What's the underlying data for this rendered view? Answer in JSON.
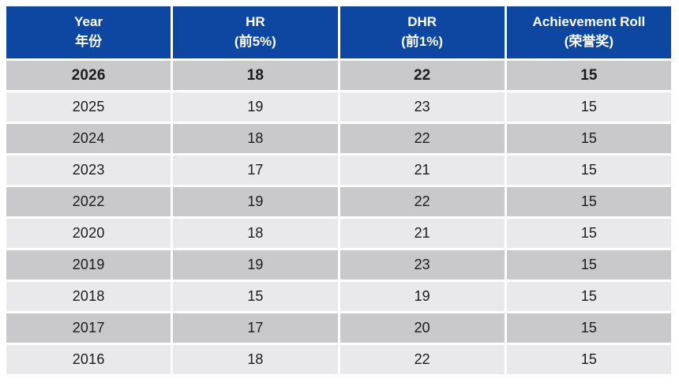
{
  "table": {
    "headers": [
      {
        "line1": "Year",
        "line2": "年份"
      },
      {
        "line1": "HR",
        "line2": "(前5%)"
      },
      {
        "line1": "DHR",
        "line2": "(前1%)"
      },
      {
        "line1": "Achievement Roll",
        "line2": "(荣誉奖)"
      }
    ],
    "rows": [
      {
        "year": "2026",
        "hr": "18",
        "dhr": "22",
        "roll": "15"
      },
      {
        "year": "2025",
        "hr": "19",
        "dhr": "23",
        "roll": "15"
      },
      {
        "year": "2024",
        "hr": "18",
        "dhr": "22",
        "roll": "15"
      },
      {
        "year": "2023",
        "hr": "17",
        "dhr": "21",
        "roll": "15"
      },
      {
        "year": "2022",
        "hr": "19",
        "dhr": "22",
        "roll": "15"
      },
      {
        "year": "2020",
        "hr": "18",
        "dhr": "21",
        "roll": "15"
      },
      {
        "year": "2019",
        "hr": "19",
        "dhr": "23",
        "roll": "15"
      },
      {
        "year": "2018",
        "hr": "15",
        "dhr": "19",
        "roll": "15"
      },
      {
        "year": "2017",
        "hr": "17",
        "dhr": "20",
        "roll": "15"
      },
      {
        "year": "2016",
        "hr": "18",
        "dhr": "22",
        "roll": "15"
      }
    ]
  },
  "colors": {
    "header_bg": "#0d47a1",
    "header_text": "#ffffff",
    "row_dark": "#c9c9cb",
    "row_light": "#e9e9eb",
    "body_text": "#1b1b1b",
    "highlight_text": "#ff0000"
  },
  "chart_data": {
    "type": "table",
    "title": "",
    "categories": [
      "2026",
      "2025",
      "2024",
      "2023",
      "2022",
      "2020",
      "2019",
      "2018",
      "2017",
      "2016"
    ],
    "columns": [
      "Year 年份",
      "HR (前5%)",
      "DHR (前1%)",
      "Achievement Roll (荣誉奖)"
    ],
    "series": [
      {
        "name": "HR (前5%)",
        "values": [
          18,
          19,
          18,
          17,
          19,
          18,
          19,
          15,
          17,
          18
        ]
      },
      {
        "name": "DHR (前1%)",
        "values": [
          22,
          23,
          22,
          21,
          22,
          21,
          23,
          19,
          20,
          22
        ]
      },
      {
        "name": "Achievement Roll (荣誉奖)",
        "values": [
          15,
          15,
          15,
          15,
          15,
          15,
          15,
          15,
          15,
          15
        ]
      }
    ],
    "annotations": [
      "Row 2026 is emphasized in bold; its HR value 18 and DHR value 22 are shown in red"
    ]
  }
}
